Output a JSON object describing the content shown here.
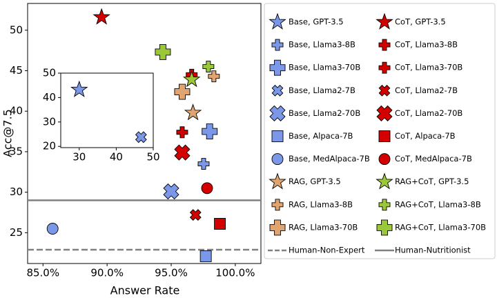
{
  "chart_data": [
    {
      "type": "scatter",
      "xlabel": "Answer Rate",
      "ylabel": "Acc@7.5",
      "xlim": [
        83.8,
        102.0
      ],
      "ylim": [
        21.2,
        53.3
      ],
      "xticks": [
        {
          "value": 85,
          "label": "85.0%"
        },
        {
          "value": 90,
          "label": "90.0%"
        },
        {
          "value": 95,
          "label": "95.0%"
        },
        {
          "value": 100,
          "label": "100.0%"
        }
      ],
      "yticks": [
        25,
        30,
        35,
        40,
        45,
        50
      ],
      "legend": "outside-right",
      "legend_columns": 2,
      "series": [
        {
          "name": "Base, GPT-3.5",
          "color": "#7b97e8",
          "marker": "star",
          "size": "medium",
          "x": [],
          "values": []
        },
        {
          "name": "CoT, GPT-3.5",
          "color": "#d40000",
          "marker": "star",
          "size": "medium",
          "x": [
            89.57
          ],
          "values": [
            51.6
          ]
        },
        {
          "name": "Base, Llama3-8B",
          "color": "#7b97e8",
          "marker": "plus",
          "size": "small",
          "x": [
            97.53
          ],
          "values": [
            33.5
          ]
        },
        {
          "name": "CoT, Llama3-8B",
          "color": "#d40000",
          "marker": "plus",
          "size": "small",
          "x": [
            95.86
          ],
          "values": [
            37.4
          ]
        },
        {
          "name": "Base, Llama3-70B",
          "color": "#7b97e8",
          "marker": "plus",
          "size": "large",
          "x": [
            98.0
          ],
          "values": [
            37.5
          ]
        },
        {
          "name": "CoT, Llama3-70B",
          "color": "#d40000",
          "marker": "plus",
          "size": "small",
          "x": [
            96.6
          ],
          "values": [
            44.5
          ]
        },
        {
          "name": "Base, Llama2-7B",
          "color": "#7b97e8",
          "marker": "x",
          "size": "small",
          "x": [],
          "values": []
        },
        {
          "name": "CoT, Llama2-7B",
          "color": "#d40000",
          "marker": "x",
          "size": "small",
          "x": [
            96.9
          ],
          "values": [
            27.2
          ]
        },
        {
          "name": "Base, Llama2-70B",
          "color": "#7b97e8",
          "marker": "x",
          "size": "large",
          "x": [
            95.0
          ],
          "values": [
            30.1
          ]
        },
        {
          "name": "CoT, Llama2-70B",
          "color": "#d40000",
          "marker": "x",
          "size": "large",
          "x": [
            95.86
          ],
          "values": [
            34.9
          ]
        },
        {
          "name": "Base, Alpaca-7B",
          "color": "#7b97e8",
          "marker": "square",
          "size": "medium",
          "x": [
            97.7
          ],
          "values": [
            22.1
          ]
        },
        {
          "name": "CoT, Alpaca-7B",
          "color": "#d40000",
          "marker": "square",
          "size": "medium",
          "x": [
            98.8
          ],
          "values": [
            26.1
          ]
        },
        {
          "name": "Base, MedAlpaca-7B",
          "color": "#7b97e8",
          "marker": "circle",
          "size": "medium",
          "x": [
            85.75
          ],
          "values": [
            25.5
          ]
        },
        {
          "name": "CoT, MedAlpaca-7B",
          "color": "#d40000",
          "marker": "circle",
          "size": "medium",
          "x": [
            97.8
          ],
          "values": [
            30.5
          ]
        },
        {
          "name": "RAG, GPT-3.5",
          "color": "#e0a470",
          "marker": "star",
          "size": "medium",
          "x": [
            96.7
          ],
          "values": [
            39.8
          ]
        },
        {
          "name": "RAG+CoT, GPT-3.5",
          "color": "#9ac83a",
          "marker": "star",
          "size": "medium",
          "x": [
            96.6
          ],
          "values": [
            43.9
          ]
        },
        {
          "name": "RAG, Llama3-8B",
          "color": "#e0a470",
          "marker": "plus",
          "size": "small",
          "x": [
            98.33
          ],
          "values": [
            44.3
          ]
        },
        {
          "name": "RAG+CoT, Llama3-8B",
          "color": "#9ac83a",
          "marker": "plus",
          "size": "small",
          "x": [
            97.9
          ],
          "values": [
            45.5
          ]
        },
        {
          "name": "RAG, Llama3-70B",
          "color": "#e0a470",
          "marker": "plus",
          "size": "large",
          "x": [
            95.86
          ],
          "values": [
            42.4
          ]
        },
        {
          "name": "RAG+CoT, Llama3-70B",
          "color": "#9ac83a",
          "marker": "plus",
          "size": "large",
          "x": [
            94.35
          ],
          "values": [
            47.3
          ]
        }
      ],
      "hlines": [
        {
          "name": "Human-Non-Expert",
          "value": 22.9,
          "style": "dashed",
          "color": "#808080"
        },
        {
          "name": "Human-Nutritionist",
          "value": 29.0,
          "style": "solid",
          "color": "#808080"
        }
      ]
    },
    {
      "type": "scatter",
      "xlim": [
        25,
        50
      ],
      "ylim": [
        19.5,
        50
      ],
      "xticks": [
        30,
        40,
        50
      ],
      "yticks": [
        20,
        30,
        40,
        50
      ],
      "series": [
        {
          "color": "#7b97e8",
          "marker": "star",
          "size": "medium",
          "x": [
            30
          ],
          "values": [
            43.2
          ]
        },
        {
          "color": "#7b97e8",
          "marker": "x",
          "size": "small",
          "x": [
            46.7
          ],
          "values": [
            23.8
          ]
        }
      ]
    }
  ]
}
